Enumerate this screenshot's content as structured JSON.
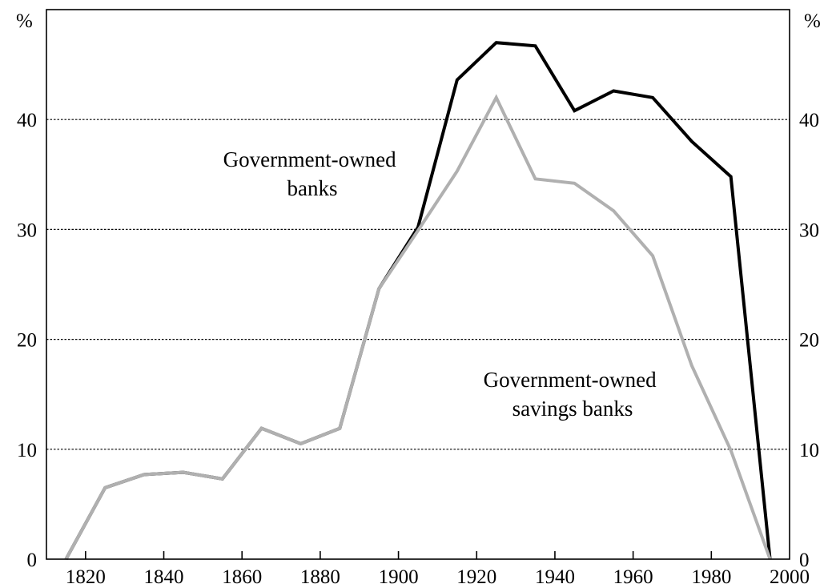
{
  "chart_data": {
    "type": "line",
    "unit_left": "%",
    "unit_right": "%",
    "xlim": [
      1810,
      2000
    ],
    "ylim": [
      0,
      50
    ],
    "x_ticks": [
      "1820",
      "1840",
      "1860",
      "1880",
      "1900",
      "1920",
      "1940",
      "1960",
      "1980",
      "2000"
    ],
    "y_ticks": [
      "0",
      "10",
      "20",
      "30",
      "40"
    ],
    "grid": "horizontal dotted",
    "series": [
      {
        "name": "Government-owned banks",
        "color": "#000000",
        "label_lines": [
          "Government-owned",
          "banks"
        ],
        "points": [
          [
            1815,
            0
          ],
          [
            1825,
            6.5
          ],
          [
            1835,
            7.7
          ],
          [
            1845,
            7.9
          ],
          [
            1855,
            7.3
          ],
          [
            1865,
            11.9
          ],
          [
            1875,
            10.5
          ],
          [
            1885,
            11.9
          ],
          [
            1895,
            24.6
          ],
          [
            1905,
            30.2
          ],
          [
            1915,
            43.6
          ],
          [
            1925,
            47.0
          ],
          [
            1935,
            46.7
          ],
          [
            1945,
            40.8
          ],
          [
            1955,
            42.6
          ],
          [
            1965,
            42.0
          ],
          [
            1975,
            38.0
          ],
          [
            1985,
            34.8
          ],
          [
            1995,
            0
          ]
        ]
      },
      {
        "name": "Government-owned savings banks",
        "color": "#b0b0b0",
        "label_lines": [
          "Government-owned",
          "savings banks"
        ],
        "points": [
          [
            1815,
            0
          ],
          [
            1825,
            6.5
          ],
          [
            1835,
            7.7
          ],
          [
            1845,
            7.9
          ],
          [
            1855,
            7.3
          ],
          [
            1865,
            11.9
          ],
          [
            1875,
            10.5
          ],
          [
            1885,
            11.9
          ],
          [
            1895,
            24.6
          ],
          [
            1905,
            29.9
          ],
          [
            1915,
            35.3
          ],
          [
            1925,
            42.0
          ],
          [
            1935,
            34.6
          ],
          [
            1945,
            34.2
          ],
          [
            1955,
            31.7
          ],
          [
            1965,
            27.6
          ],
          [
            1975,
            17.6
          ],
          [
            1985,
            9.9
          ],
          [
            1995,
            0
          ]
        ]
      }
    ]
  }
}
